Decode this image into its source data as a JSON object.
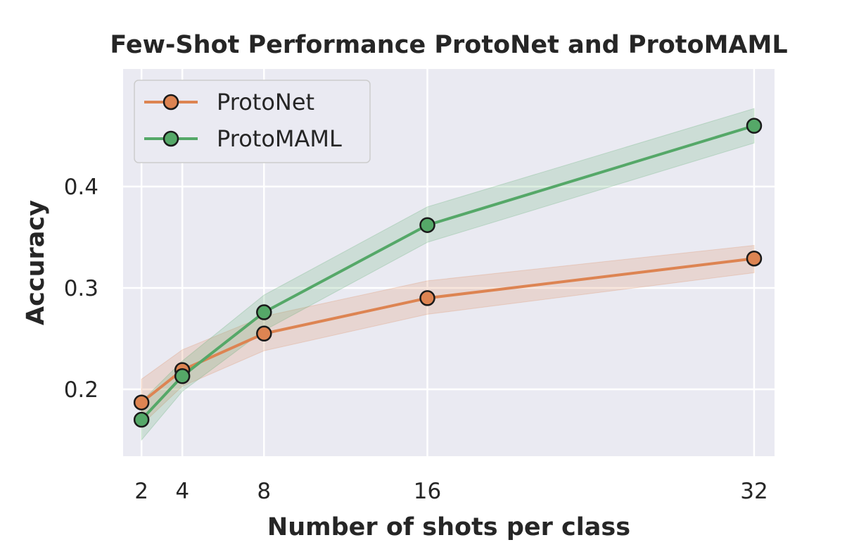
{
  "chart_data": {
    "type": "line",
    "title": "Few-Shot Performance ProtoNet and ProtoMAML",
    "xlabel": "Number of shots per class",
    "ylabel": "Accuracy",
    "x": [
      2,
      4,
      8,
      16,
      32
    ],
    "x_tick_labels": [
      "2",
      "4",
      "8",
      "16",
      "32"
    ],
    "xlim": [
      1.1,
      33.0
    ],
    "y_ticks": [
      0.2,
      0.3,
      0.4
    ],
    "y_tick_labels": [
      "0.2",
      "0.3",
      "0.4"
    ],
    "ylim": [
      0.134,
      0.516
    ],
    "grid": true,
    "legend_position": "top-left",
    "series": [
      {
        "name": "ProtoNet",
        "color": "#dd8452",
        "values": [
          0.187,
          0.219,
          0.255,
          0.29,
          0.329
        ],
        "lower": [
          0.165,
          0.203,
          0.238,
          0.274,
          0.315
        ],
        "upper": [
          0.21,
          0.239,
          0.272,
          0.307,
          0.342
        ]
      },
      {
        "name": "ProtoMAML",
        "color": "#55a868",
        "values": [
          0.17,
          0.213,
          0.276,
          0.362,
          0.46
        ],
        "lower": [
          0.15,
          0.198,
          0.258,
          0.345,
          0.443
        ],
        "upper": [
          0.188,
          0.228,
          0.293,
          0.38,
          0.477
        ]
      }
    ]
  }
}
